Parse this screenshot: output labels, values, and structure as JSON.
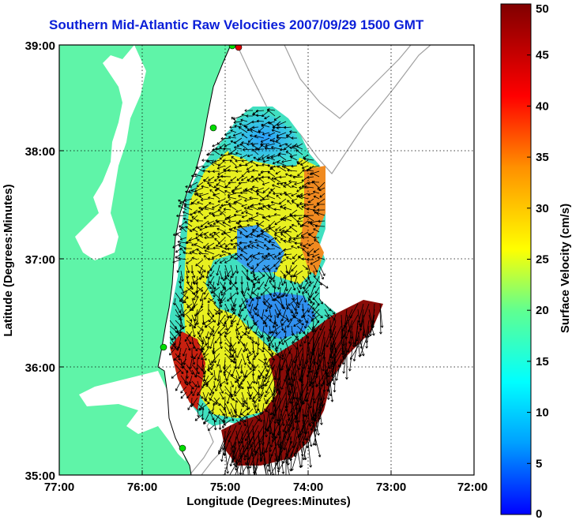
{
  "title": "Southern Mid-Atlantic Raw Velocities 2007/09/29 1500 GMT",
  "x_axis": {
    "label": "Longitude (Degrees:Minutes)",
    "ticks": [
      "77:00",
      "76:00",
      "75:00",
      "74:00",
      "73:00",
      "72:00"
    ]
  },
  "y_axis": {
    "label": "Latitude (Degrees:Minutes)",
    "ticks": [
      "39:00",
      "38:00",
      "37:00",
      "36:00",
      "35:00"
    ]
  },
  "colorbar": {
    "label": "Surface Velocity (cm/s)",
    "min": 0,
    "max": 50,
    "ticks": [
      "50",
      "45",
      "40",
      "35",
      "30",
      "25",
      "20",
      "15",
      "10",
      "5",
      "0"
    ],
    "colormap": [
      "#0000ff",
      "#00a0ff",
      "#00ffff",
      "#60ff90",
      "#ffff00",
      "#ff9000",
      "#ff0000",
      "#800000"
    ]
  },
  "colors": {
    "land": "#5ff4a8",
    "water": "#ffffff",
    "coastline": "#000000",
    "bathymetry": "#a0a0a0",
    "grid": "#000000",
    "station": "#00dd00"
  },
  "map_extent": {
    "lon": [
      -77,
      -72
    ],
    "lat": [
      35,
      39
    ]
  }
}
